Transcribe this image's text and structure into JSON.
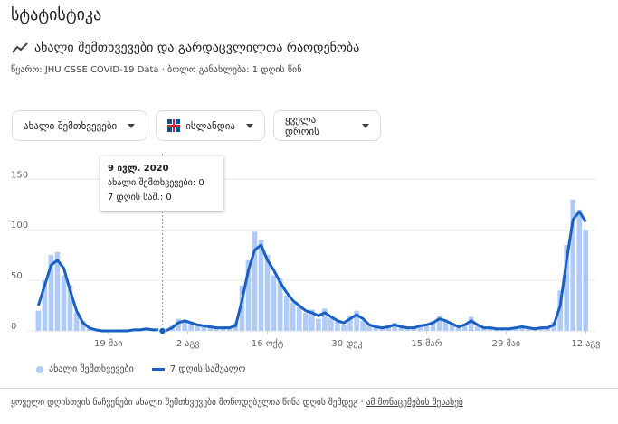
{
  "header": {
    "title": "სტატისტიკა",
    "subtitle": "ახალი შემთხვევები და გარდაცვლილთა რაოდენობა",
    "source_prefix": "წყარო:",
    "source_link": "JHU CSSE COVID-19 Data",
    "updated": "· ბოლო განახლება: 1 დღის წინ"
  },
  "filters": [
    "ახალი შემთხვევები",
    "ისლანდია",
    "ყველა დროის"
  ],
  "tooltip": {
    "date": {
      "value": 51,
      "label": "9 ივლ. 2020"
    },
    "lines": [
      "ახალი შემთხვევები: 0",
      "7 დღის საშ.: 0"
    ]
  },
  "footer": {
    "note": "ყოველი დღისთვის ნაჩვენები ახალი შემთხვევები მოწოდებულია წინა დღის შემდეგ",
    "link": "ამ მონაცემების შესახებ"
  },
  "chart_data": {
    "type": "bar-line",
    "x": [
      -66,
      -60,
      -54,
      -48,
      -42,
      -36,
      -30,
      -24,
      -18,
      -12,
      -6,
      0,
      6,
      12,
      18,
      24,
      30,
      36,
      42,
      48,
      54,
      60,
      66,
      72,
      78,
      84,
      90,
      96,
      102,
      108,
      114,
      120,
      126,
      132,
      138,
      144,
      150,
      156,
      162,
      168,
      174,
      180,
      186,
      192,
      198,
      204,
      210,
      216,
      222,
      228,
      234,
      240,
      246,
      252,
      258,
      264,
      270,
      276,
      282,
      288,
      294,
      300,
      306,
      312,
      318,
      324,
      330,
      336,
      342,
      348,
      354,
      360,
      366,
      372,
      378,
      384,
      390,
      396,
      402,
      408,
      414,
      420,
      426,
      432,
      438,
      444,
      450
    ],
    "series": [
      {
        "name": "ახალი შემთხვევები",
        "kind": "bar",
        "color": "#aecbfa",
        "values": [
          20,
          50,
          75,
          78,
          55,
          45,
          18,
          10,
          2,
          1,
          0,
          0,
          0,
          0,
          0,
          2,
          0,
          3,
          1,
          0,
          0,
          5,
          12,
          9,
          7,
          5,
          6,
          3,
          2,
          4,
          2,
          8,
          45,
          70,
          98,
          90,
          75,
          55,
          52,
          35,
          28,
          24,
          18,
          21,
          12,
          22,
          13,
          9,
          6,
          15,
          20,
          10,
          5,
          3,
          4,
          3,
          8,
          3,
          2,
          4,
          6,
          5,
          10,
          15,
          9,
          8,
          3,
          7,
          14,
          5,
          2,
          4,
          1,
          3,
          2,
          4,
          5,
          2,
          3,
          2,
          4,
          9,
          40,
          85,
          130,
          120,
          100
        ]
      },
      {
        "name": "7 დღის საშუალო",
        "kind": "line",
        "color": "#1a5fc4",
        "values": [
          25,
          45,
          65,
          70,
          62,
          40,
          20,
          8,
          3,
          1,
          0,
          0,
          0,
          0,
          0,
          1,
          1,
          2,
          1,
          1,
          0,
          3,
          8,
          10,
          8,
          6,
          5,
          4,
          3,
          3,
          3,
          5,
          30,
          60,
          80,
          85,
          70,
          60,
          48,
          38,
          30,
          25,
          20,
          18,
          15,
          18,
          14,
          10,
          8,
          12,
          16,
          12,
          6,
          4,
          3,
          4,
          6,
          4,
          3,
          3,
          5,
          6,
          8,
          12,
          10,
          7,
          4,
          6,
          10,
          6,
          3,
          3,
          2,
          2,
          2,
          3,
          4,
          3,
          2,
          3,
          3,
          6,
          25,
          70,
          110,
          118,
          108
        ]
      }
    ],
    "xlim": [
      -68,
      454
    ],
    "xticks": [
      {
        "value": 0,
        "label": "19 მაი"
      },
      {
        "value": 75,
        "label": "2 აგვ"
      },
      {
        "value": 150,
        "label": "16 ოქტ"
      },
      {
        "value": 225,
        "label": "30 დეკ"
      },
      {
        "value": 300,
        "label": "15 მარ"
      },
      {
        "value": 375,
        "label": "29 მაი"
      },
      {
        "value": 450,
        "label": "12 აგვ"
      }
    ],
    "ylim": [
      0,
      170
    ],
    "yticks": [
      0,
      50,
      100,
      150
    ],
    "grid": true
  }
}
